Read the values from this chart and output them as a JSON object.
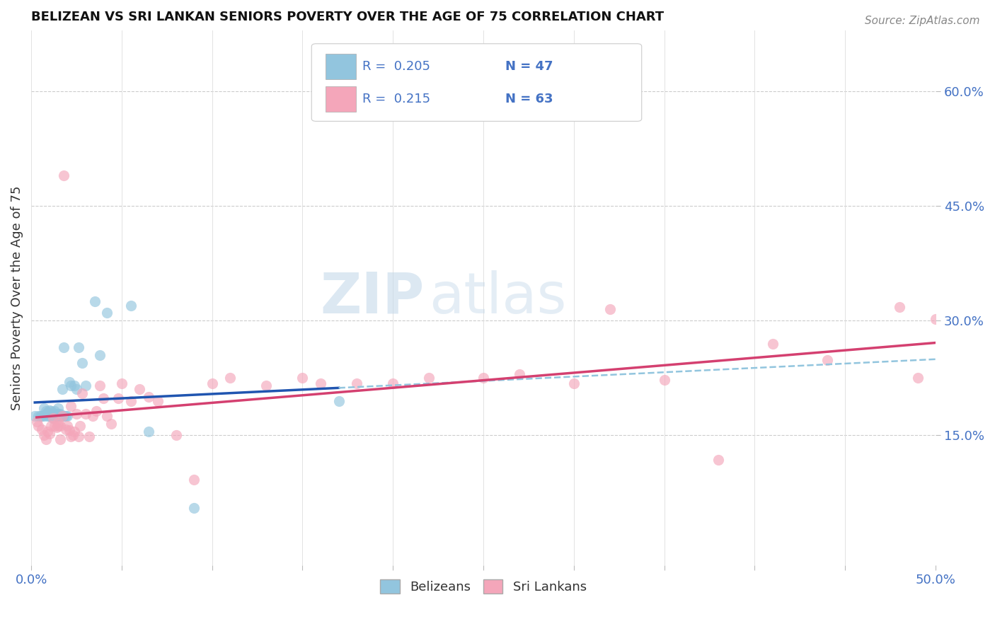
{
  "title": "BELIZEAN VS SRI LANKAN SENIORS POVERTY OVER THE AGE OF 75 CORRELATION CHART",
  "source": "Source: ZipAtlas.com",
  "ylabel": "Seniors Poverty Over the Age of 75",
  "xlim": [
    0.0,
    0.5
  ],
  "ylim": [
    -0.02,
    0.68
  ],
  "ytick_labels": [
    "15.0%",
    "30.0%",
    "45.0%",
    "60.0%"
  ],
  "yticks": [
    0.15,
    0.3,
    0.45,
    0.6
  ],
  "xtick_positions": [
    0.0,
    0.05,
    0.1,
    0.15,
    0.2,
    0.25,
    0.3,
    0.35,
    0.4,
    0.45,
    0.5
  ],
  "xtick_labels": [
    "0.0%",
    "",
    "",
    "",
    "",
    "",
    "",
    "",
    "",
    "",
    "50.0%"
  ],
  "watermark_zip": "ZIP",
  "watermark_atlas": "atlas",
  "legend_r1": "0.205",
  "legend_n1": "47",
  "legend_r2": "0.215",
  "legend_n2": "63",
  "label1": "Belizeans",
  "label2": "Sri Lankans",
  "color1": "#92C5DE",
  "color2": "#F4A6BA",
  "trendline1_solid_color": "#2055B0",
  "trendline1_dash_color": "#92C5DE",
  "trendline2_color": "#D44070",
  "background_color": "#FFFFFF",
  "scatter1_x": [
    0.002,
    0.004,
    0.005,
    0.006,
    0.007,
    0.007,
    0.008,
    0.008,
    0.009,
    0.009,
    0.01,
    0.01,
    0.01,
    0.011,
    0.011,
    0.012,
    0.012,
    0.013,
    0.013,
    0.013,
    0.014,
    0.014,
    0.015,
    0.015,
    0.015,
    0.016,
    0.016,
    0.017,
    0.017,
    0.018,
    0.018,
    0.019,
    0.02,
    0.021,
    0.022,
    0.024,
    0.025,
    0.026,
    0.028,
    0.03,
    0.035,
    0.038,
    0.042,
    0.055,
    0.065,
    0.09,
    0.17
  ],
  "scatter1_y": [
    0.175,
    0.175,
    0.175,
    0.175,
    0.185,
    0.175,
    0.178,
    0.182,
    0.18,
    0.175,
    0.183,
    0.178,
    0.175,
    0.182,
    0.178,
    0.178,
    0.172,
    0.178,
    0.175,
    0.182,
    0.178,
    0.175,
    0.185,
    0.178,
    0.175,
    0.178,
    0.175,
    0.21,
    0.175,
    0.265,
    0.175,
    0.175,
    0.175,
    0.22,
    0.215,
    0.215,
    0.21,
    0.265,
    0.245,
    0.215,
    0.325,
    0.255,
    0.31,
    0.32,
    0.155,
    0.055,
    0.195
  ],
  "scatter2_x": [
    0.003,
    0.004,
    0.006,
    0.007,
    0.008,
    0.009,
    0.01,
    0.011,
    0.012,
    0.013,
    0.014,
    0.015,
    0.015,
    0.016,
    0.016,
    0.017,
    0.018,
    0.019,
    0.02,
    0.021,
    0.022,
    0.022,
    0.023,
    0.024,
    0.025,
    0.026,
    0.027,
    0.028,
    0.03,
    0.032,
    0.034,
    0.036,
    0.038,
    0.04,
    0.042,
    0.044,
    0.048,
    0.05,
    0.055,
    0.06,
    0.065,
    0.07,
    0.08,
    0.09,
    0.1,
    0.11,
    0.13,
    0.15,
    0.16,
    0.18,
    0.2,
    0.22,
    0.25,
    0.27,
    0.3,
    0.32,
    0.35,
    0.38,
    0.41,
    0.44,
    0.48,
    0.49,
    0.5
  ],
  "scatter2_y": [
    0.168,
    0.162,
    0.158,
    0.15,
    0.145,
    0.155,
    0.152,
    0.162,
    0.172,
    0.162,
    0.16,
    0.167,
    0.162,
    0.162,
    0.145,
    0.175,
    0.49,
    0.158,
    0.162,
    0.157,
    0.188,
    0.148,
    0.15,
    0.155,
    0.178,
    0.148,
    0.162,
    0.205,
    0.178,
    0.148,
    0.175,
    0.182,
    0.215,
    0.198,
    0.175,
    0.165,
    0.198,
    0.218,
    0.195,
    0.21,
    0.2,
    0.195,
    0.15,
    0.092,
    0.218,
    0.225,
    0.215,
    0.225,
    0.218,
    0.218,
    0.218,
    0.225,
    0.225,
    0.23,
    0.218,
    0.315,
    0.222,
    0.118,
    0.27,
    0.248,
    0.318,
    0.225,
    0.302
  ]
}
